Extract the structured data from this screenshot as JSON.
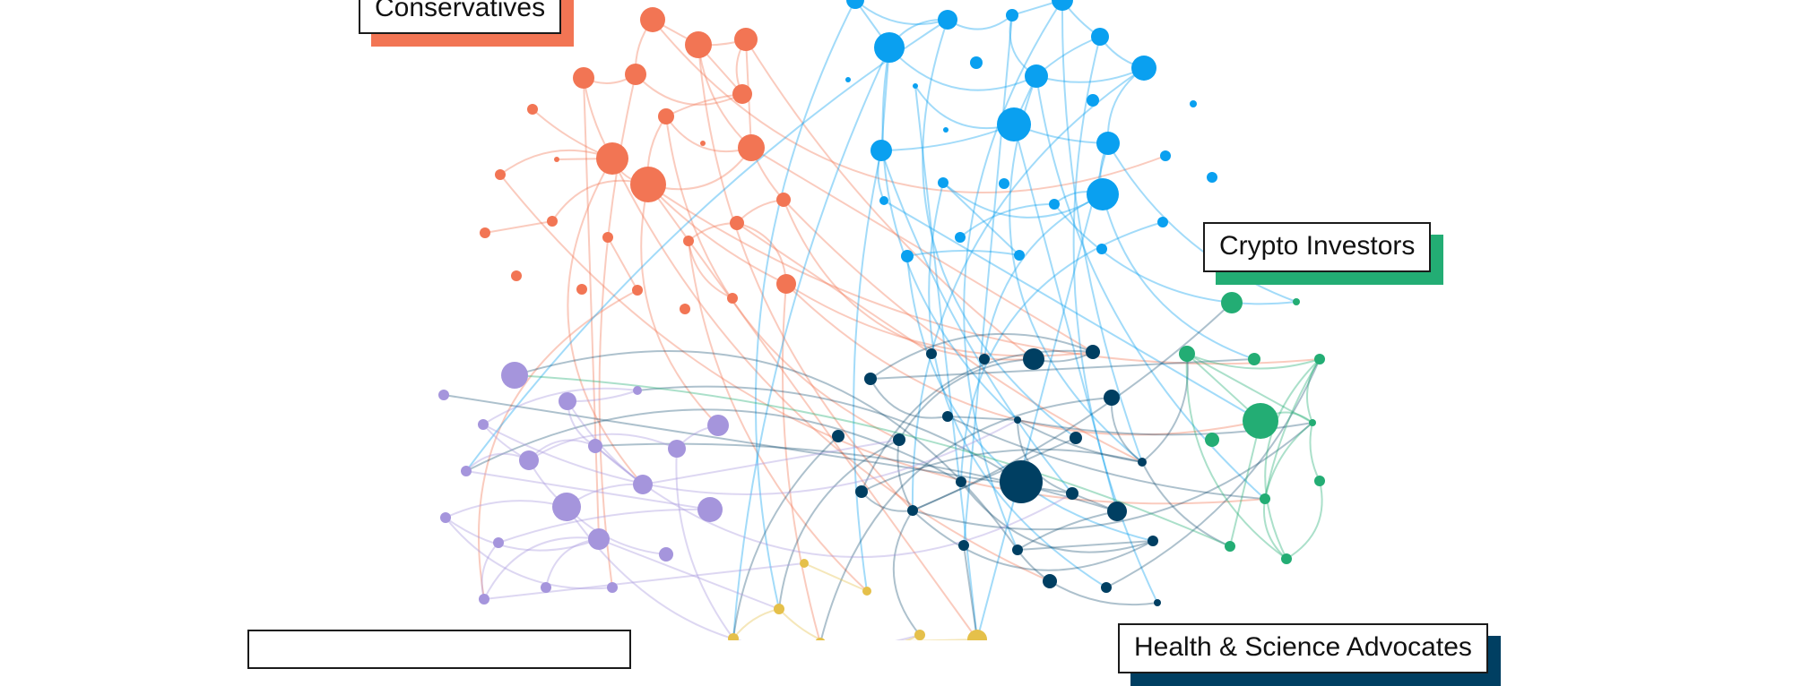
{
  "colors": {
    "conservatives": "#F27554",
    "blue_cluster": "#0AA0F0",
    "dark_cluster": "#003F62",
    "crypto": "#23AD74",
    "purple_cluster": "#A595DC",
    "yellow_cluster": "#E5C04A"
  },
  "labels": {
    "conservatives": "Conservatives",
    "crypto": "Crypto Investors",
    "health": "Health & Science Advocates"
  }
}
